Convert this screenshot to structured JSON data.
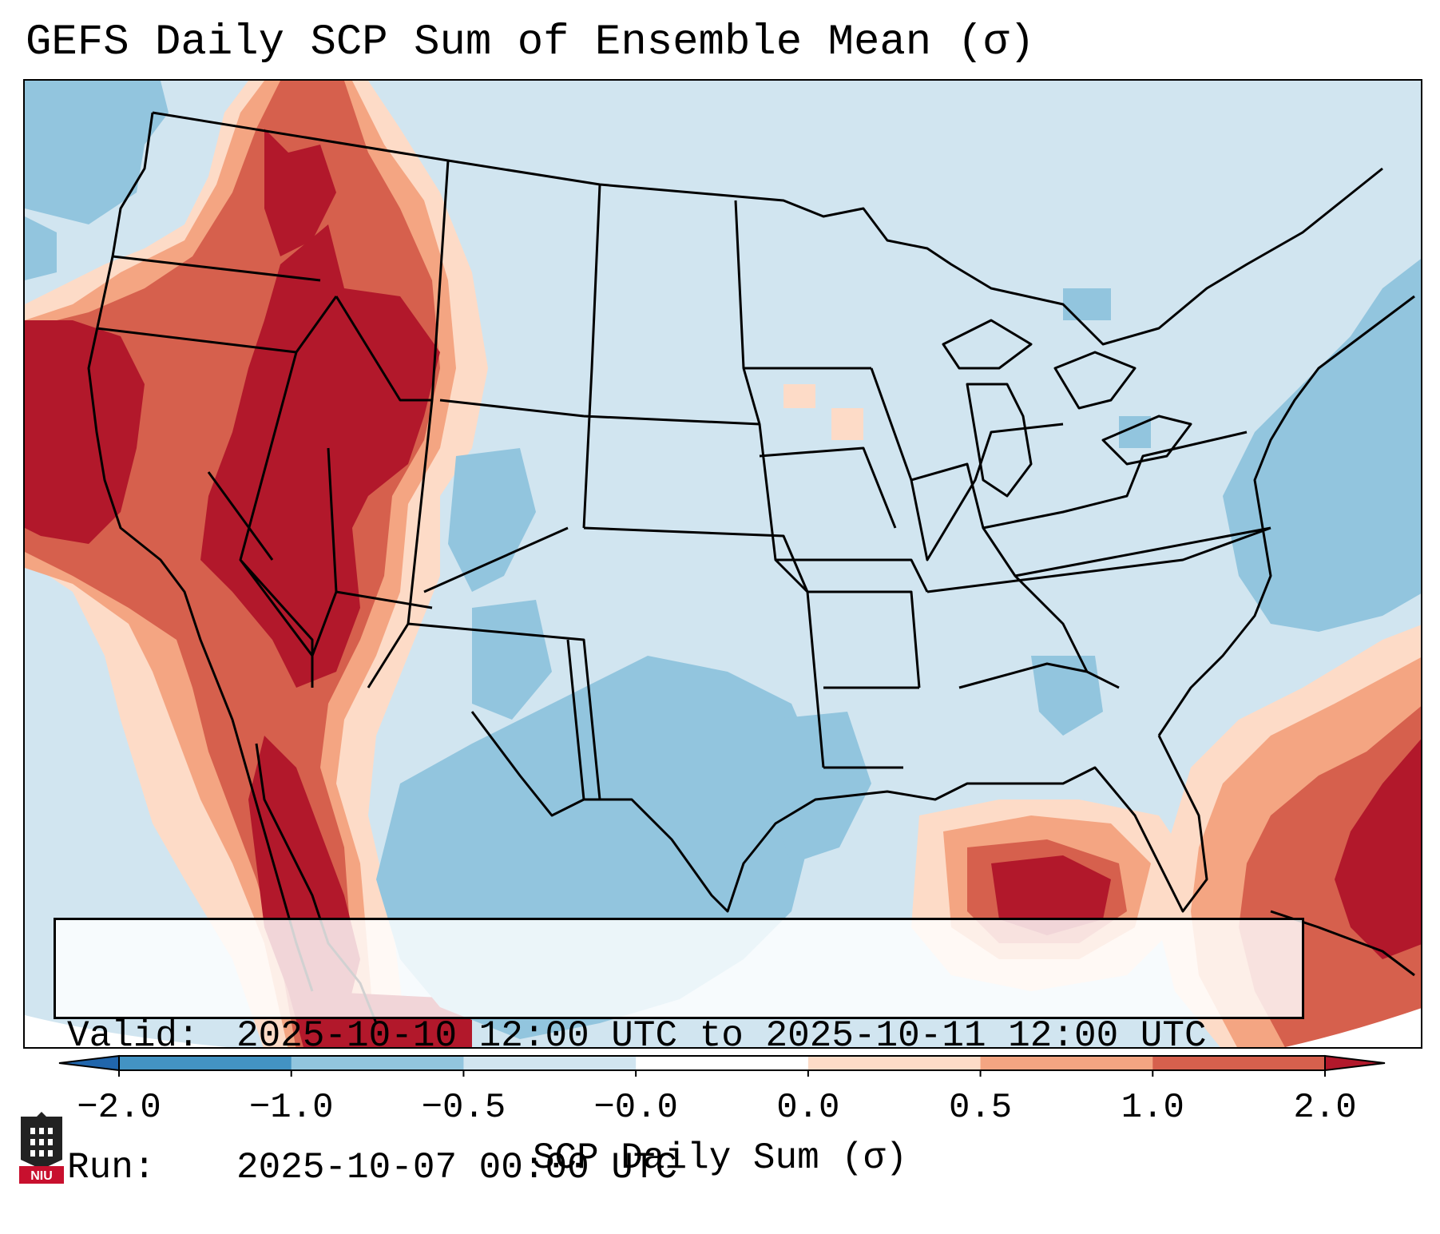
{
  "title": "GEFS Daily SCP Sum of Ensemble Mean (σ)",
  "info": {
    "valid_label": "Valid:",
    "valid_value": "2025-10-10 12:00 UTC to 2025-10-11 12:00 UTC",
    "run_label": "Run:",
    "run_value": "2025-10-07 00:00 UTC"
  },
  "colorbar": {
    "label": "SCP Daily Sum (σ)",
    "ticks": [
      "−2.0",
      "−1.0",
      "−0.5",
      "−0.0",
      "0.0",
      "0.5",
      "1.0",
      "2.0"
    ],
    "colors": [
      "#4393c3",
      "#92c5de",
      "#d1e5f0",
      "#ffffff",
      "#fddbc7",
      "#f4a582",
      "#d6604d",
      "#b2182b"
    ],
    "extend_low_color": "#2166ac",
    "extend_high_color": "#b2182b"
  },
  "logo": {
    "text": "NIU"
  }
}
